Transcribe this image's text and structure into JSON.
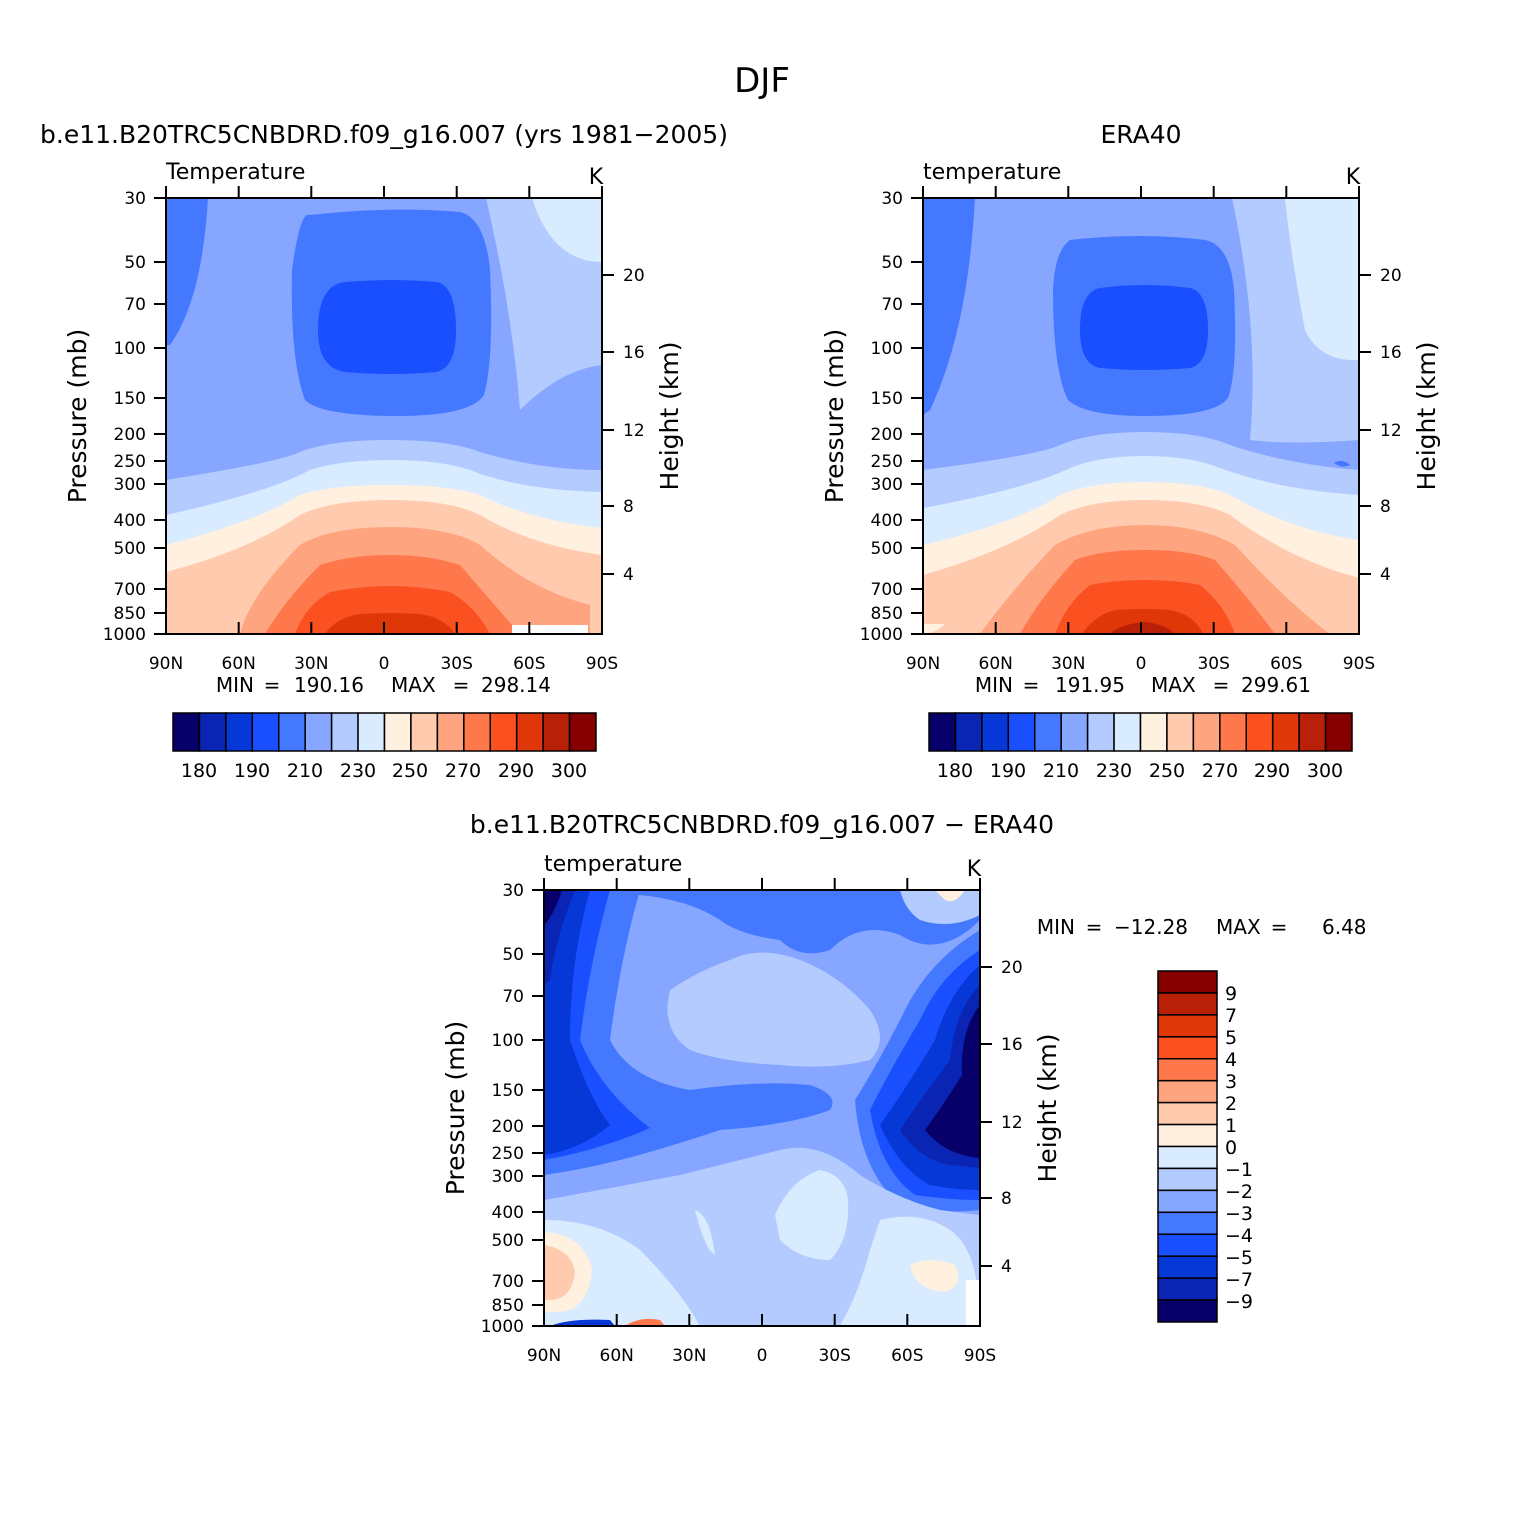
{
  "page_title": "DJF",
  "colors": {
    "temp_scale": [
      "#08006a",
      "#0a24b4",
      "#0637d7",
      "#1a4fff",
      "#4479ff",
      "#86a6ff",
      "#b4cbff",
      "#d9ebff",
      "#fff0e0",
      "#ffcaae",
      "#fea47e",
      "#fe784c",
      "#fb5020",
      "#e03709",
      "#b82107",
      "#860000"
    ],
    "diff_scale": [
      "#860000",
      "#b82107",
      "#e03709",
      "#fb5020",
      "#fe784c",
      "#fea47e",
      "#ffcaae",
      "#fff0e0",
      "#d9ebff",
      "#b4cbff",
      "#86a6ff",
      "#4479ff",
      "#1a4fff",
      "#0637d7",
      "#0a24b4",
      "#08006a"
    ]
  },
  "chart_data": [
    {
      "type": "contour",
      "panel": "model",
      "title": "b.e11.B20TRC5CNBDRD.f09_g16.007 (yrs 1981-2005)",
      "variable_label": "Temperature",
      "units": "K",
      "xlabel": "",
      "ylabel": "Pressure (mb)",
      "ylabel_right": "Height (km)",
      "x_tick_labels": [
        "90N",
        "60N",
        "30N",
        "0",
        "30S",
        "60S",
        "90S"
      ],
      "y_tick_labels": [
        "30",
        "50",
        "70",
        "100",
        "150",
        "200",
        "250",
        "300",
        "400",
        "500",
        "700",
        "850",
        "1000"
      ],
      "height_tick_labels": [
        "20",
        "16",
        "12",
        "8",
        "4"
      ],
      "min_label": "MIN",
      "min": "190.16",
      "max_label": "MAX",
      "max": "298.14",
      "colorbar_labels": [
        "180",
        "190",
        "210",
        "230",
        "250",
        "270",
        "290",
        "300"
      ]
    },
    {
      "type": "contour",
      "panel": "obs",
      "title": "ERA40",
      "variable_label": "temperature",
      "units": "K",
      "ylabel": "Pressure (mb)",
      "ylabel_right": "Height (km)",
      "x_tick_labels": [
        "90N",
        "60N",
        "30N",
        "0",
        "30S",
        "60S",
        "90S"
      ],
      "y_tick_labels": [
        "30",
        "50",
        "70",
        "100",
        "150",
        "200",
        "250",
        "300",
        "400",
        "500",
        "700",
        "850",
        "1000"
      ],
      "height_tick_labels": [
        "20",
        "16",
        "12",
        "8",
        "4"
      ],
      "min_label": "MIN",
      "min": "191.95",
      "max_label": "MAX",
      "max": "299.61",
      "colorbar_labels": [
        "180",
        "190",
        "210",
        "230",
        "250",
        "270",
        "290",
        "300"
      ]
    },
    {
      "type": "contour",
      "panel": "difference",
      "title": "b.e11.B20TRC5CNBDRD.f09_g16.007 - ERA40",
      "variable_label": "temperature",
      "units": "K",
      "ylabel": "Pressure (mb)",
      "ylabel_right": "Height (km)",
      "x_tick_labels": [
        "90N",
        "60N",
        "30N",
        "0",
        "30S",
        "60S",
        "90S"
      ],
      "y_tick_labels": [
        "30",
        "50",
        "70",
        "100",
        "150",
        "200",
        "250",
        "300",
        "400",
        "500",
        "700",
        "850",
        "1000"
      ],
      "height_tick_labels": [
        "20",
        "16",
        "12",
        "8",
        "4"
      ],
      "min_label": "MIN",
      "min": "-12.28",
      "max_label": "MAX",
      "max": "6.48",
      "colorbar_labels": [
        "9",
        "7",
        "5",
        "4",
        "3",
        "2",
        "1",
        "0",
        "-1",
        "-2",
        "-3",
        "-4",
        "-5",
        "-7",
        "-9"
      ]
    }
  ]
}
